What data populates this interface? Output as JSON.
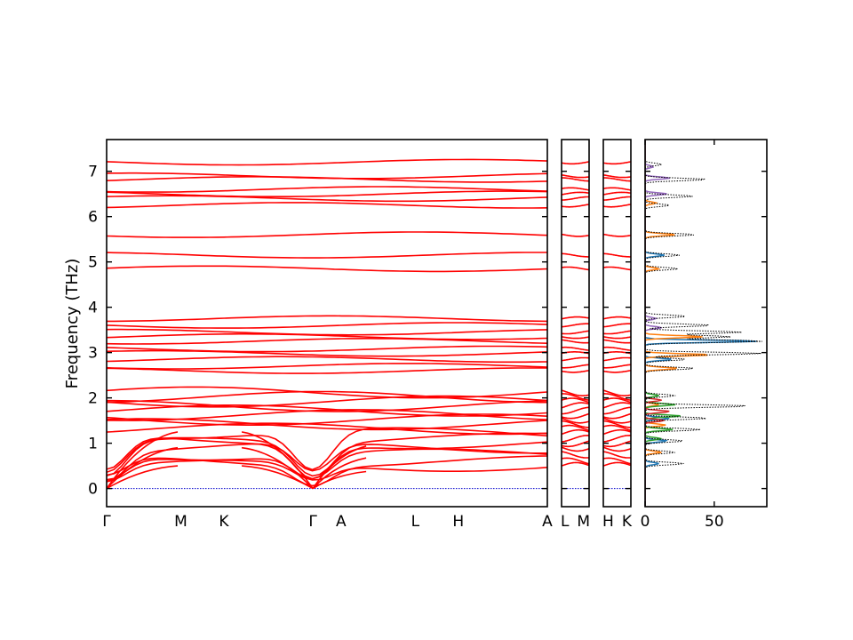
{
  "chart_data": {
    "type": "line",
    "ylabel": "Frequency (THz)",
    "ylim": [
      -0.4,
      7.7
    ],
    "y_ticks": [
      0,
      1,
      2,
      3,
      4,
      5,
      6,
      7
    ],
    "y_tick_labels": [
      "0",
      "1",
      "2",
      "3",
      "4",
      "5",
      "6",
      "7"
    ],
    "grid": false,
    "band_color": "#ff0000",
    "zero_line_color": "#0000cc",
    "segments": [
      {
        "name": "segment-1",
        "labels": [
          "Γ",
          "M",
          "K",
          "Γ",
          "A",
          "L",
          "H",
          "A"
        ],
        "positions": [
          0,
          0.5,
          0.79,
          1.39,
          1.58,
          2.08,
          2.37,
          2.97
        ]
      },
      {
        "name": "segment-2",
        "labels": [
          "L",
          "M"
        ],
        "positions": [
          0,
          1
        ]
      },
      {
        "name": "segment-3",
        "labels": [
          "H",
          "K"
        ],
        "positions": [
          0,
          1
        ]
      }
    ],
    "band_levels": [
      0.5,
      0.6,
      0.75,
      0.9,
      1.0,
      1.1,
      1.22,
      1.32,
      1.42,
      1.52,
      1.62,
      1.72,
      1.82,
      1.92,
      2.02,
      2.12,
      2.6,
      2.7,
      2.85,
      2.98,
      3.08,
      3.25,
      3.35,
      3.45,
      3.6,
      3.75,
      4.85,
      5.15,
      5.6,
      6.25,
      6.4,
      6.5,
      6.6,
      6.82,
      6.9,
      7.2
    ],
    "dos": {
      "xlim": [
        0,
        88
      ],
      "x_ticks": [
        0,
        50
      ],
      "x_tick_labels": [
        "0",
        "50"
      ],
      "total_color": "#000000",
      "series": [
        {
          "color": "#1f77b4",
          "peaks": [
            [
              3.25,
              82
            ],
            [
              5.15,
              14
            ],
            [
              2.85,
              20
            ],
            [
              1.05,
              16
            ],
            [
              1.55,
              18
            ],
            [
              0.55,
              10
            ]
          ]
        },
        {
          "color": "#ff7f0e",
          "peaks": [
            [
              2.95,
              48
            ],
            [
              3.35,
              42
            ],
            [
              5.6,
              22
            ],
            [
              6.3,
              8
            ],
            [
              4.85,
              10
            ],
            [
              2.65,
              24
            ],
            [
              0.8,
              12
            ],
            [
              1.4,
              15
            ],
            [
              1.85,
              10
            ]
          ]
        },
        {
          "color": "#2ca02c",
          "peaks": [
            [
              1.3,
              20
            ],
            [
              1.6,
              26
            ],
            [
              1.85,
              22
            ],
            [
              2.05,
              10
            ],
            [
              1.1,
              12
            ]
          ]
        },
        {
          "color": "#d62728",
          "peaks": [
            [
              1.5,
              14
            ],
            [
              1.7,
              18
            ],
            [
              1.95,
              12
            ]
          ]
        },
        {
          "color": "#9467bd",
          "peaks": [
            [
              6.5,
              16
            ],
            [
              6.85,
              18
            ],
            [
              3.55,
              12
            ],
            [
              3.75,
              8
            ],
            [
              7.1,
              6
            ]
          ]
        }
      ],
      "total_peaks": [
        [
          3.25,
          86
        ],
        [
          2.98,
          84
        ],
        [
          3.45,
          70
        ],
        [
          3.35,
          62
        ],
        [
          1.82,
          75
        ],
        [
          3.6,
          48
        ],
        [
          2.65,
          36
        ],
        [
          2.85,
          30
        ],
        [
          5.6,
          36
        ],
        [
          5.15,
          25
        ],
        [
          4.85,
          24
        ],
        [
          6.82,
          45
        ],
        [
          6.45,
          35
        ],
        [
          6.25,
          18
        ],
        [
          7.15,
          12
        ],
        [
          1.55,
          45
        ],
        [
          1.3,
          40
        ],
        [
          1.05,
          28
        ],
        [
          0.8,
          22
        ],
        [
          0.55,
          28
        ],
        [
          2.05,
          22
        ],
        [
          3.8,
          30
        ]
      ]
    }
  }
}
